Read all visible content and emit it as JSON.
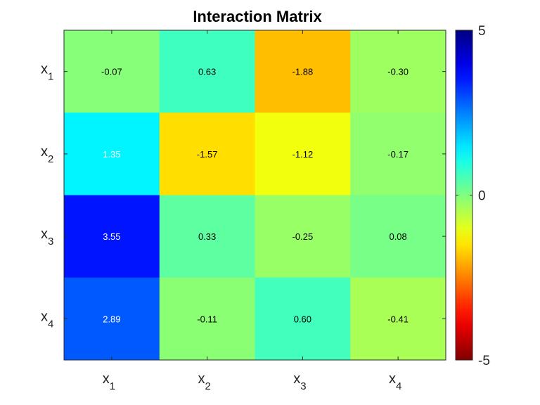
{
  "chart_data": {
    "type": "heatmap",
    "title": "Interaction Matrix",
    "xlabel": "",
    "ylabel": "",
    "x_labels": [
      {
        "base": "x",
        "sub": "1"
      },
      {
        "base": "x",
        "sub": "2"
      },
      {
        "base": "x",
        "sub": "3"
      },
      {
        "base": "x",
        "sub": "4"
      }
    ],
    "y_labels": [
      {
        "base": "x",
        "sub": "1"
      },
      {
        "base": "x",
        "sub": "2"
      },
      {
        "base": "x",
        "sub": "3"
      },
      {
        "base": "x",
        "sub": "4"
      }
    ],
    "values": [
      [
        -0.07,
        0.63,
        -1.88,
        -0.3
      ],
      [
        1.35,
        -1.57,
        -1.12,
        -0.17
      ],
      [
        3.55,
        0.33,
        -0.25,
        0.08
      ],
      [
        2.89,
        -0.11,
        0.6,
        -0.41
      ]
    ],
    "value_labels": [
      [
        "-0.07",
        "0.63",
        "-1.88",
        "-0.30"
      ],
      [
        "1.35",
        "-1.57",
        "-1.12",
        "-0.17"
      ],
      [
        "3.55",
        "0.33",
        "-0.25",
        "0.08"
      ],
      [
        "2.89",
        "-0.11",
        "0.60",
        "-0.41"
      ]
    ],
    "colormap": "jet-reversed",
    "color_range": [
      -5,
      5
    ],
    "colorbar": {
      "location": "right",
      "ticks": [
        5,
        0,
        -5
      ],
      "tick_labels": [
        "5",
        "0",
        "-5"
      ]
    }
  }
}
